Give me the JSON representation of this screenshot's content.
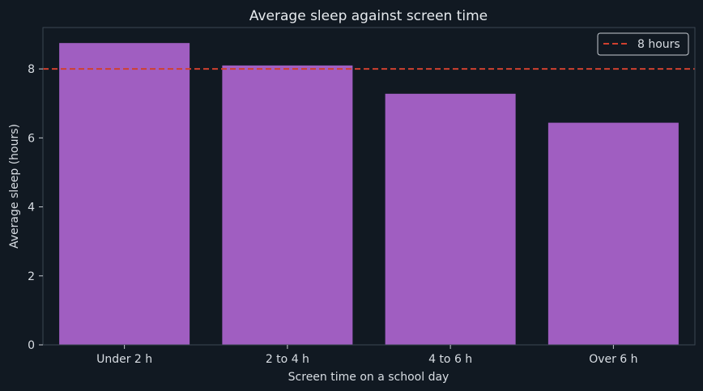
{
  "chart_data": {
    "type": "bar",
    "title": "Average sleep against screen time",
    "xlabel": "Screen time on a school day",
    "ylabel": "Average sleep (hours)",
    "categories": [
      "Under 2 h",
      "2 to 4 h",
      "4 to 6 h",
      "Over 6 h"
    ],
    "values": [
      8.75,
      8.1,
      7.28,
      6.44
    ],
    "ylim": [
      0,
      9.2
    ],
    "yticks": [
      0,
      2,
      4,
      6,
      8
    ],
    "reference_line": {
      "value": 8,
      "label": "8 hours"
    },
    "legend": "top-right",
    "grid": false
  },
  "colors": {
    "background": "#111922",
    "bar": "#a05ec1",
    "reference_line": "#d0402f",
    "text": "#d8dde3",
    "axis": "#3a4652"
  }
}
